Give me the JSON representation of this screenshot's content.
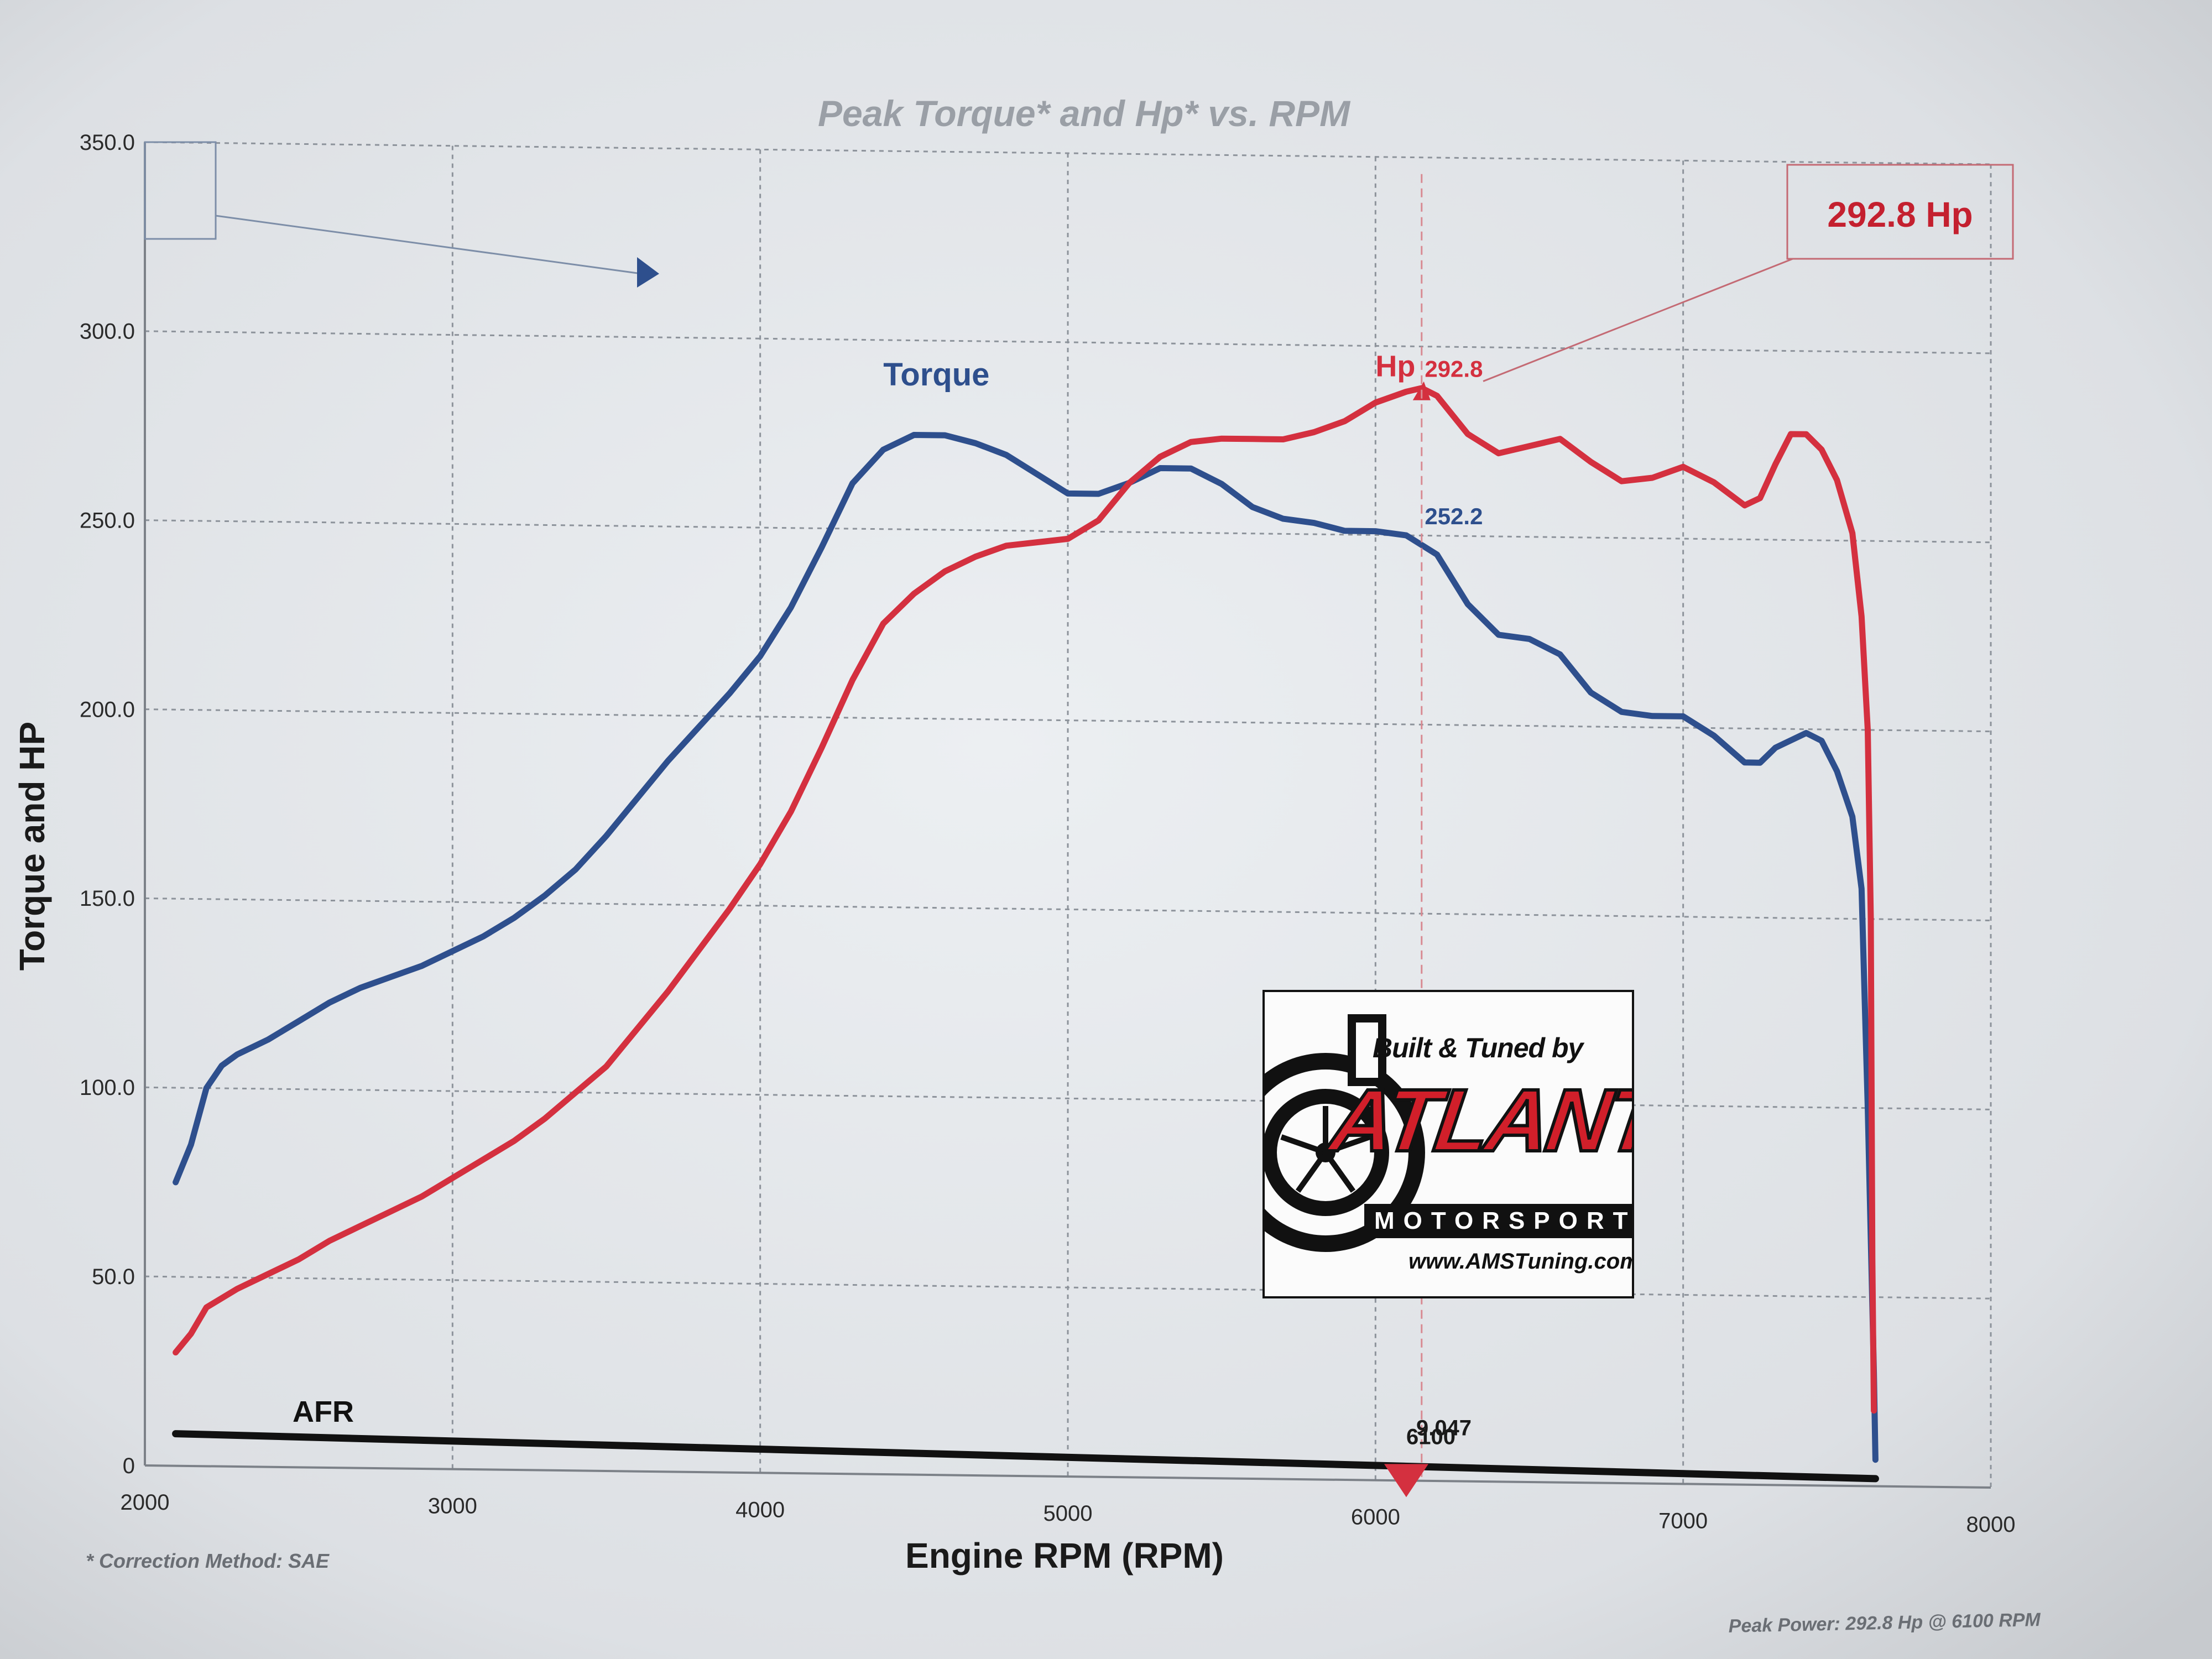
{
  "chart_data": {
    "type": "line",
    "title": "Peak Torque* and Hp* vs. RPM",
    "xlabel": "Engine RPM (RPM)",
    "ylabel": "Torque and HP",
    "xlim": [
      2000,
      8000
    ],
    "ylim": [
      0,
      350
    ],
    "x_ticks": [
      "2000",
      "3000",
      "4000",
      "5000",
      "6000",
      "7000",
      "8000"
    ],
    "y_ticks": [
      "0",
      "50.0",
      "100.0",
      "150.0",
      "200.0",
      "250.0",
      "300.0",
      "350.0"
    ],
    "grid": true,
    "series": [
      {
        "name": "Torque",
        "color": "#2e4f8d",
        "points": [
          [
            2100,
            75
          ],
          [
            2150,
            85
          ],
          [
            2200,
            100
          ],
          [
            2250,
            106
          ],
          [
            2300,
            109
          ],
          [
            2400,
            113
          ],
          [
            2500,
            118
          ],
          [
            2600,
            123
          ],
          [
            2700,
            127
          ],
          [
            2800,
            130
          ],
          [
            2900,
            133
          ],
          [
            3000,
            137
          ],
          [
            3100,
            141
          ],
          [
            3200,
            146
          ],
          [
            3300,
            152
          ],
          [
            3400,
            159
          ],
          [
            3500,
            168
          ],
          [
            3600,
            178
          ],
          [
            3700,
            188
          ],
          [
            3800,
            197
          ],
          [
            3900,
            206
          ],
          [
            4000,
            216
          ],
          [
            4100,
            229
          ],
          [
            4200,
            245
          ],
          [
            4300,
            262
          ],
          [
            4400,
            271
          ],
          [
            4500,
            275
          ],
          [
            4600,
            275
          ],
          [
            4700,
            273
          ],
          [
            4800,
            270
          ],
          [
            4900,
            265
          ],
          [
            5000,
            260
          ],
          [
            5100,
            260
          ],
          [
            5200,
            263
          ],
          [
            5300,
            267
          ],
          [
            5400,
            267
          ],
          [
            5500,
            263
          ],
          [
            5600,
            257
          ],
          [
            5700,
            254
          ],
          [
            5800,
            253
          ],
          [
            5900,
            251
          ],
          [
            6000,
            251
          ],
          [
            6100,
            250
          ],
          [
            6200,
            245
          ],
          [
            6300,
            232
          ],
          [
            6400,
            224
          ],
          [
            6500,
            223
          ],
          [
            6600,
            219
          ],
          [
            6700,
            209
          ],
          [
            6800,
            204
          ],
          [
            6900,
            203
          ],
          [
            7000,
            203
          ],
          [
            7100,
            198
          ],
          [
            7200,
            191
          ],
          [
            7250,
            191
          ],
          [
            7300,
            195
          ],
          [
            7400,
            199
          ],
          [
            7450,
            197
          ],
          [
            7500,
            189
          ],
          [
            7550,
            177
          ],
          [
            7580,
            158
          ],
          [
            7600,
            100
          ],
          [
            7620,
            30
          ],
          [
            7625,
            7
          ]
        ]
      },
      {
        "name": "Hp",
        "color": "#d4303f",
        "points": [
          [
            2100,
            30
          ],
          [
            2150,
            35
          ],
          [
            2200,
            42
          ],
          [
            2300,
            47
          ],
          [
            2400,
            51
          ],
          [
            2500,
            55
          ],
          [
            2600,
            60
          ],
          [
            2700,
            64
          ],
          [
            2800,
            68
          ],
          [
            2900,
            72
          ],
          [
            3000,
            77
          ],
          [
            3100,
            82
          ],
          [
            3200,
            87
          ],
          [
            3300,
            93
          ],
          [
            3400,
            100
          ],
          [
            3500,
            107
          ],
          [
            3600,
            117
          ],
          [
            3700,
            127
          ],
          [
            3800,
            138
          ],
          [
            3900,
            149
          ],
          [
            4000,
            161
          ],
          [
            4100,
            175
          ],
          [
            4200,
            192
          ],
          [
            4300,
            210
          ],
          [
            4400,
            225
          ],
          [
            4500,
            233
          ],
          [
            4600,
            239
          ],
          [
            4700,
            243
          ],
          [
            4800,
            246
          ],
          [
            4900,
            247
          ],
          [
            5000,
            248
          ],
          [
            5100,
            253
          ],
          [
            5200,
            263
          ],
          [
            5300,
            270
          ],
          [
            5400,
            274
          ],
          [
            5500,
            275
          ],
          [
            5600,
            275
          ],
          [
            5700,
            275
          ],
          [
            5800,
            277
          ],
          [
            5900,
            280
          ],
          [
            6000,
            285
          ],
          [
            6100,
            288
          ],
          [
            6150,
            289
          ],
          [
            6200,
            287
          ],
          [
            6300,
            277
          ],
          [
            6400,
            272
          ],
          [
            6500,
            274
          ],
          [
            6600,
            276
          ],
          [
            6700,
            270
          ],
          [
            6800,
            265
          ],
          [
            6900,
            266
          ],
          [
            7000,
            269
          ],
          [
            7100,
            265
          ],
          [
            7200,
            259
          ],
          [
            7250,
            261
          ],
          [
            7300,
            270
          ],
          [
            7350,
            278
          ],
          [
            7400,
            278
          ],
          [
            7450,
            274
          ],
          [
            7500,
            266
          ],
          [
            7550,
            252
          ],
          [
            7580,
            230
          ],
          [
            7600,
            200
          ],
          [
            7610,
            150
          ],
          [
            7615,
            60
          ],
          [
            7620,
            20
          ]
        ]
      },
      {
        "name": "AFR",
        "color": "#111111",
        "points": [
          [
            2100,
            8.5
          ],
          [
            7625,
            2
          ]
        ]
      }
    ],
    "annotations": {
      "hp_peak_label": "Hp",
      "hp_peak_value": "292.8",
      "hp_peak_rpm": 6150,
      "hp_peak_box": "292.8 Hp",
      "torque_at_peak": "252.2",
      "marker_rpm": 6100,
      "marker_readout_top": "9.047",
      "marker_readout_bottom": "6100",
      "afr_label": "AFR",
      "curve_label_torque": "Torque"
    },
    "footnote_left": "* Correction Method: SAE",
    "footnote_right": "Peak Power: 292.8 Hp @ 6100 RPM"
  },
  "logo": {
    "built_by": "Built & Tuned by",
    "name": "ATLANTIC",
    "sub": "MOTORSPORTS",
    "url": "www.AMSTuning.com"
  }
}
